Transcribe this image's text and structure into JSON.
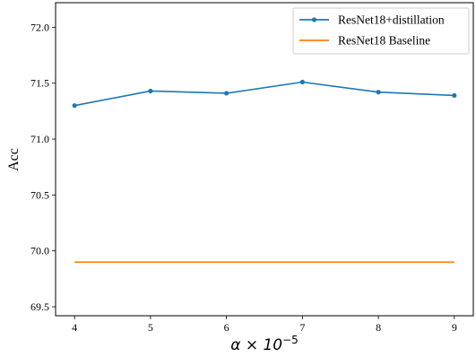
{
  "chart_data": {
    "type": "line",
    "x": [
      4,
      5,
      6,
      7,
      8,
      9
    ],
    "xlim": [
      3.75,
      9.25
    ],
    "ylim": [
      69.42,
      72.22
    ],
    "xticks": [
      4,
      5,
      6,
      7,
      8,
      9
    ],
    "xtick_labels": [
      "4",
      "5",
      "6",
      "7",
      "8",
      "9"
    ],
    "yticks": [
      69.5,
      70.0,
      70.5,
      71.0,
      71.5,
      72.0
    ],
    "ytick_labels": [
      "69.5",
      "70.0",
      "70.5",
      "71.0",
      "71.5",
      "72.0"
    ],
    "xlabel": "α × 10",
    "xlabel_exponent": "−5",
    "ylabel": "Acc",
    "title": "",
    "grid": false,
    "legend": "top-right",
    "series": [
      {
        "name": "ResNet18+distillation",
        "values": [
          71.3,
          71.43,
          71.41,
          71.51,
          71.42,
          71.39
        ],
        "color": "#1f77b4",
        "marker": "dot"
      },
      {
        "name": "ResNet18 Baseline",
        "values": [
          69.9,
          69.9,
          69.9,
          69.9,
          69.9,
          69.9
        ],
        "color": "#ff7f0e",
        "marker": "none"
      }
    ]
  }
}
